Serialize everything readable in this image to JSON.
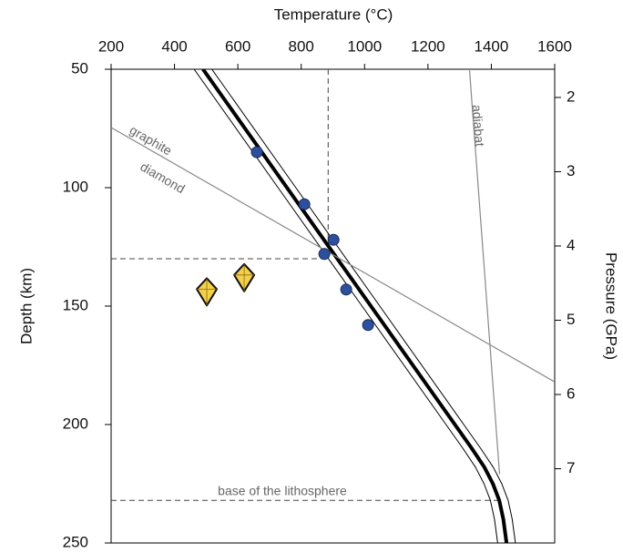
{
  "chart_data": {
    "type": "line",
    "x_label": "Temperature (°C)",
    "y_label": "Depth (km)",
    "y2_label": "Pressure (GPa)",
    "xlim": [
      200,
      1600
    ],
    "xticks": [
      200,
      400,
      600,
      800,
      1000,
      1200,
      1400,
      1600
    ],
    "ylim": [
      50,
      250
    ],
    "y_reversed": true,
    "yticks": [
      50,
      100,
      150,
      200,
      250
    ],
    "y2lim": [
      1.62,
      8.0
    ],
    "y2ticks": [
      2,
      3,
      4,
      5,
      6,
      7
    ],
    "series": [
      {
        "type": "line",
        "color": "#000000",
        "width": 4,
        "x": [
          490,
          755,
          1020,
          1285,
          1338,
          1378,
          1405,
          1425,
          1438,
          1448
        ],
        "values": [
          50,
          100,
          150,
          200,
          210,
          218,
          225,
          232,
          240,
          250
        ]
      },
      {
        "type": "line",
        "color": "#000000",
        "width": 1,
        "x": [
          462,
          727,
          992,
          1257,
          1310,
          1350,
          1377,
          1397,
          1410,
          1420
        ],
        "values": [
          50,
          100,
          150,
          200,
          210,
          218,
          225,
          232,
          240,
          250
        ]
      },
      {
        "type": "line",
        "color": "#000000",
        "width": 1,
        "x": [
          518,
          783,
          1048,
          1313,
          1366,
          1406,
          1433,
          1453,
          1466,
          1476
        ],
        "values": [
          50,
          100,
          150,
          200,
          210,
          218,
          225,
          232,
          240,
          250
        ]
      },
      {
        "type": "line",
        "color": "#888888",
        "width": 1.2,
        "x": [
          1331,
          1426
        ],
        "values": [
          50,
          221
        ]
      },
      {
        "type": "line",
        "color": "#888888",
        "width": 1.2,
        "x": [
          200,
          1600
        ],
        "values": [
          74.6,
          182
        ]
      },
      {
        "type": "scatter",
        "color": "#2c4f9e",
        "x": [
          660,
          810,
          902,
          873,
          942,
          1011
        ],
        "values": [
          85,
          107,
          122,
          128,
          143,
          158
        ]
      },
      {
        "type": "diamond",
        "color": "#f3cf4a",
        "x": [
          502,
          620
        ],
        "values": [
          144,
          138
        ]
      }
    ],
    "reference_lines": [
      {
        "x": [
          885,
          885
        ],
        "values": [
          50,
          130
        ]
      },
      {
        "x": [
          200,
          885
        ],
        "values": [
          130,
          130
        ]
      },
      {
        "x": [
          200,
          1430
        ],
        "values": [
          232,
          232
        ]
      }
    ],
    "annotations": [
      "graphite",
      "diamond",
      "adiabat",
      "base of the lithosphere"
    ]
  }
}
